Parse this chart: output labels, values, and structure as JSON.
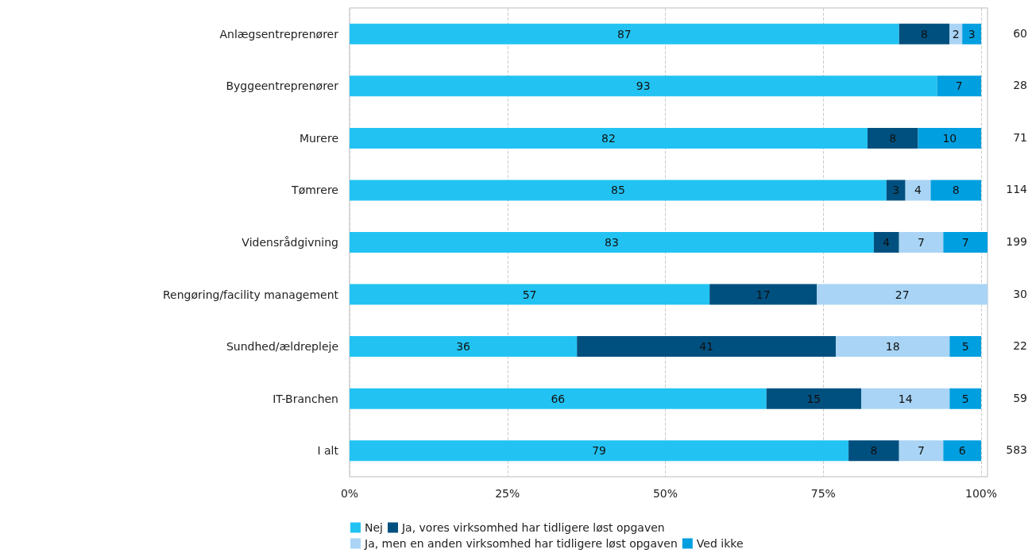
{
  "chart_data": {
    "type": "bar",
    "orientation": "horizontal",
    "stacked": true,
    "data_labels": true,
    "grid": "x",
    "legend": "bottom",
    "categories": [
      "Anlægsentreprenører",
      "Byggeentreprenører",
      "Murere",
      "Tømrere",
      "Vidensrådgivning",
      "Rengøring/facility management",
      "Sundhed/ældrepleje",
      "IT-Branchen",
      "I alt"
    ],
    "series": [
      {
        "name": "Nej",
        "color": "#22c3f3",
        "values": [
          87,
          93,
          82,
          85,
          83,
          57,
          36,
          66,
          79
        ]
      },
      {
        "name": "Ja, vores virksomhed har tidligere løst opgaven",
        "color": "#00507f",
        "values": [
          8,
          null,
          8,
          3,
          4,
          17,
          41,
          15,
          8
        ]
      },
      {
        "name": "Ja, men en anden virksomhed har tidligere løst opgaven",
        "color": "#a9d4f5",
        "values": [
          2,
          null,
          null,
          4,
          7,
          27,
          18,
          14,
          7
        ]
      },
      {
        "name": "Ved ikke",
        "color": "#009fe0",
        "values": [
          3,
          7,
          10,
          8,
          7,
          null,
          5,
          5,
          6
        ]
      }
    ],
    "xlim": [
      0,
      101
    ],
    "xticks": [
      {
        "value": 0,
        "label": "0%"
      },
      {
        "value": 25,
        "label": "25%"
      },
      {
        "value": 50,
        "label": "50%"
      },
      {
        "value": 75,
        "label": "75%"
      },
      {
        "value": 100,
        "label": "100%"
      }
    ],
    "annotations": [
      "60",
      "28",
      "71",
      "114",
      "199",
      "30",
      "22",
      "59",
      "583"
    ]
  }
}
